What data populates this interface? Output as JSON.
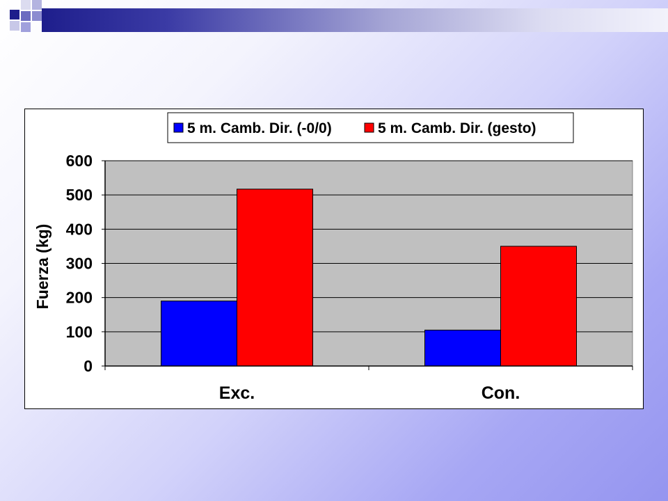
{
  "colors": {
    "plot_background": "#c0c0c0",
    "series_1": "#0000ff",
    "series_2": "#ff0000"
  },
  "decoration": {
    "icon": "blue-squares-logo-icon"
  },
  "chart_data": {
    "type": "bar",
    "title": "",
    "xlabel": "",
    "ylabel": "Fuerza (kg)",
    "categories": [
      "Exc.",
      "Con."
    ],
    "series": [
      {
        "name": "5 m. Camb. Dir. (-0/0)",
        "values": [
          190,
          105
        ],
        "color": "#0000ff"
      },
      {
        "name": "5 m. Camb. Dir. (gesto)",
        "values": [
          517,
          350
        ],
        "color": "#ff0000"
      }
    ],
    "ylim": [
      0,
      600
    ],
    "yticks": [
      "0",
      "100",
      "200",
      "300",
      "400",
      "500",
      "600"
    ],
    "grid": true,
    "legend_position": "top"
  }
}
